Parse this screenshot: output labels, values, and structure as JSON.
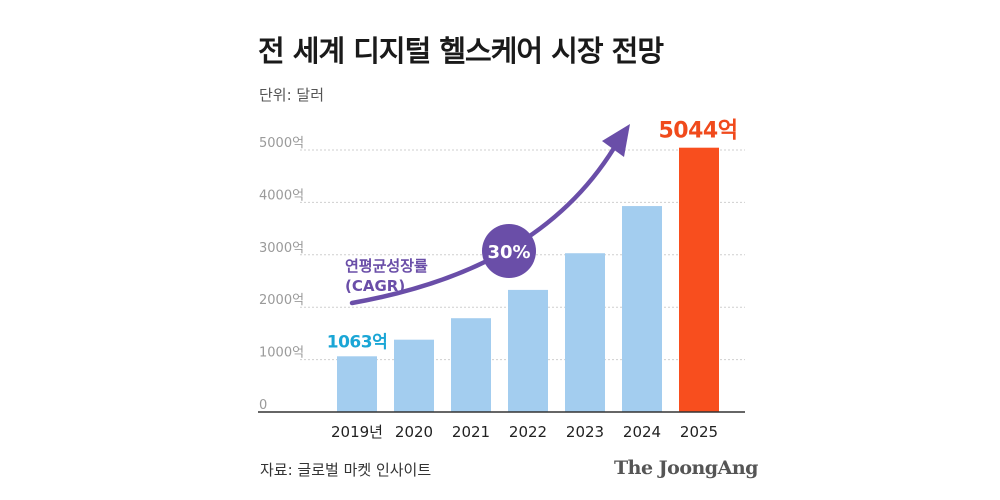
{
  "chart_data": {
    "type": "bar",
    "title": "전 세계 디지털 헬스케어 시장 전망",
    "unit_label": "단위: 달러",
    "categories": [
      "2019년",
      "2020",
      "2021",
      "2022",
      "2023",
      "2024",
      "2025"
    ],
    "values": [
      1063,
      1380,
      1790,
      2330,
      3030,
      3930,
      5044
    ],
    "ylim": [
      0,
      5000
    ],
    "yticks": [
      0,
      1000,
      2000,
      3000,
      4000,
      5000
    ],
    "ytick_labels": [
      "0",
      "1000억",
      "2000억",
      "3000억",
      "4000억",
      "5000억"
    ],
    "grid": true,
    "value_labels": [
      {
        "category": "2019년",
        "text": "1063억",
        "color": "#1aa6d6"
      },
      {
        "category": "2025",
        "text": "5044억",
        "color": "#f04a1c"
      }
    ],
    "annotation": {
      "label_line1": "연평균성장률",
      "label_line2": "(CAGR)",
      "badge": "30%"
    },
    "colors": {
      "bar": "#a3cdef",
      "highlight_bar": "#f84e1e",
      "arrow": "#6a4ea8",
      "grid": "#cfcfcf",
      "axis": "#333333"
    }
  },
  "footer": {
    "source": "자료: 글로벌 마켓 인사이트",
    "brand": "The JoongAng"
  }
}
